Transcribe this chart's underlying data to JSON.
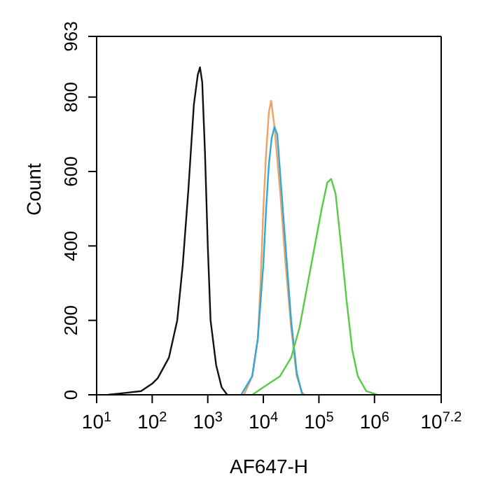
{
  "chart_data": {
    "type": "line",
    "xlabel": "AF647-H",
    "ylabel": "Count",
    "log": "x",
    "xlim": [
      10,
      15848932
    ],
    "xticks": [
      {
        "value": 10,
        "label": "10$^{1}$"
      },
      {
        "value": 100,
        "label": "10$^{2}$"
      },
      {
        "value": 1000,
        "label": "10$^{3}$"
      },
      {
        "value": 10000,
        "label": "10$^{4}$"
      },
      {
        "value": 100000,
        "label": "10$^{5}$"
      },
      {
        "value": 1000000,
        "label": "10$^{6}$"
      },
      {
        "value": 15848932,
        "label": "10$^{7.2}$"
      }
    ],
    "ylim": [
      0,
      963
    ],
    "yticks": [
      0,
      200,
      400,
      600,
      800,
      963
    ],
    "marker": "none",
    "line_style": "solid",
    "series": [
      {
        "color": "#111111",
        "x": [
          16,
          32,
          63,
          100,
          126,
          200,
          282,
          355,
          447,
          562,
          661,
          724,
          794,
          891,
          1000,
          1122,
          1413,
          1778,
          2239
        ],
        "values": [
          0,
          5,
          10,
          30,
          45,
          100,
          200,
          350,
          550,
          780,
          860,
          880,
          840,
          650,
          400,
          200,
          80,
          20,
          0
        ]
      },
      {
        "color": "#f0a060",
        "x": [
          4467,
          6310,
          7943,
          8913,
          10000,
          11220,
          12589,
          13804,
          15849,
          19953,
          25119,
          31623,
          39811,
          50119,
          56234
        ],
        "values": [
          0,
          50,
          150,
          300,
          500,
          650,
          760,
          790,
          720,
          550,
          350,
          180,
          50,
          5,
          0
        ]
      },
      {
        "color": "#30a8d8",
        "x": [
          3981,
          6310,
          7943,
          10000,
          11220,
          12589,
          14125,
          15849,
          17783,
          19953,
          25119,
          31623,
          39811,
          50119
        ],
        "values": [
          0,
          50,
          150,
          350,
          500,
          620,
          690,
          720,
          700,
          600,
          400,
          200,
          60,
          0
        ]
      },
      {
        "color": "#55cc44",
        "x": [
          6310,
          10000,
          19953,
          31623,
          44668,
          63096,
          89125,
          112202,
          141254,
          165959,
          199526,
          251189,
          316228,
          398107,
          501187,
          707946,
          1122018
        ],
        "values": [
          0,
          20,
          50,
          100,
          180,
          300,
          420,
          500,
          570,
          580,
          540,
          400,
          250,
          120,
          50,
          10,
          0
        ]
      }
    ]
  }
}
